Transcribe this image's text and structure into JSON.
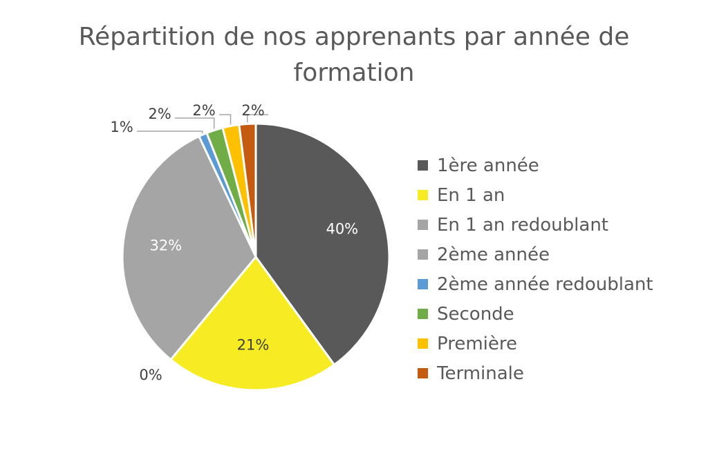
{
  "chart_data": {
    "type": "pie",
    "title_lines": [
      "Répartition de nos apprenants par année de",
      "formation"
    ],
    "categories": [
      "1ère année",
      "En 1 an",
      "En 1 an redoublant",
      "2ème année",
      "2ème année redoublant",
      "Seconde",
      "Première",
      "Terminale"
    ],
    "values": [
      40,
      21,
      0,
      32,
      1,
      2,
      2,
      2
    ],
    "labels": [
      "40%",
      "21%",
      "0%",
      "32%",
      "1%",
      "2%",
      "2%",
      "2%"
    ],
    "colors": [
      "#595959",
      "#f7ec23",
      "#a5a5a5",
      "#a5a5a5",
      "#5b9bd5",
      "#70ad47",
      "#ffc000",
      "#c55a11"
    ],
    "legend_position": "right"
  }
}
